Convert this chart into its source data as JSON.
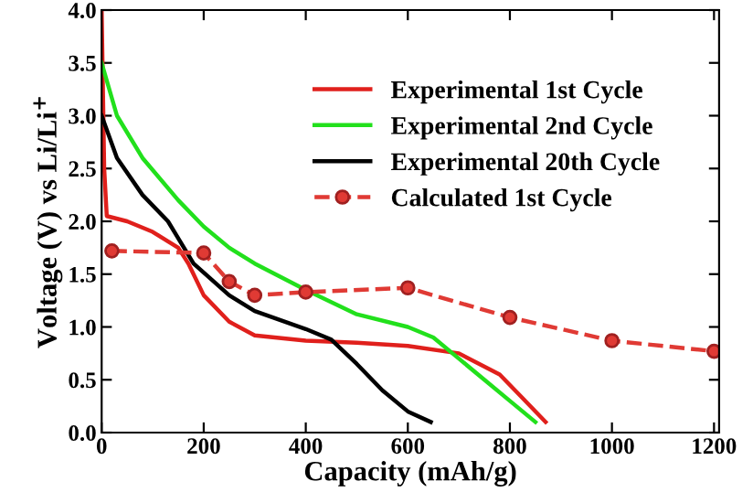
{
  "chart_data": {
    "type": "line",
    "xlabel": "Capacity (mAh/g)",
    "ylabel": "Voltage (V) vs Li/Li$^{+}$",
    "xlim": [
      0,
      1210
    ],
    "ylim": [
      0,
      4.0
    ],
    "xticks": [
      0,
      200,
      400,
      600,
      800,
      1000,
      1200
    ],
    "yticks": [
      {
        "value": 0,
        "label": "0.0"
      },
      0.5,
      {
        "value": 1,
        "label": "1.0"
      },
      1.5,
      {
        "value": 2,
        "label": "2.0"
      },
      2.5,
      {
        "value": 3,
        "label": "3.0"
      },
      3.5,
      {
        "value": 4,
        "label": "4.0"
      }
    ],
    "grid": false,
    "legend": "top right",
    "series": [
      {
        "name": "Experimental 1st Cycle",
        "color": "#e0201c",
        "line_style": "solid",
        "marker": "none",
        "x": [
          0,
          5,
          10,
          50,
          100,
          150,
          170,
          200,
          250,
          300,
          400,
          500,
          600,
          700,
          780,
          820,
          870
        ],
        "values": [
          4.0,
          2.5,
          2.05,
          2.0,
          1.9,
          1.75,
          1.6,
          1.3,
          1.05,
          0.92,
          0.87,
          0.85,
          0.82,
          0.75,
          0.55,
          0.35,
          0.1
        ]
      },
      {
        "name": "Experimental 2nd Cycle",
        "color": "#22e01c",
        "line_style": "solid",
        "marker": "none",
        "x": [
          0,
          30,
          80,
          150,
          200,
          250,
          300,
          400,
          500,
          600,
          650,
          700,
          750,
          800,
          850
        ],
        "values": [
          3.5,
          3.0,
          2.6,
          2.2,
          1.95,
          1.75,
          1.6,
          1.35,
          1.12,
          1.0,
          0.9,
          0.7,
          0.5,
          0.3,
          0.1
        ]
      },
      {
        "name": "Experimental 20th Cycle",
        "color": "#000000",
        "line_style": "solid",
        "marker": "none",
        "x": [
          0,
          30,
          80,
          130,
          180,
          250,
          300,
          400,
          450,
          500,
          550,
          600,
          645
        ],
        "values": [
          3.0,
          2.6,
          2.25,
          2.0,
          1.6,
          1.3,
          1.15,
          0.98,
          0.88,
          0.65,
          0.4,
          0.2,
          0.1
        ]
      },
      {
        "name": "Calculated 1st Cycle",
        "color": "#e03a34",
        "line_style": "dashed",
        "marker": "circle",
        "x": [
          20,
          200,
          250,
          300,
          400,
          600,
          800,
          1000,
          1200
        ],
        "values": [
          1.72,
          1.7,
          1.43,
          1.3,
          1.33,
          1.37,
          1.09,
          0.87,
          0.77
        ]
      }
    ]
  }
}
